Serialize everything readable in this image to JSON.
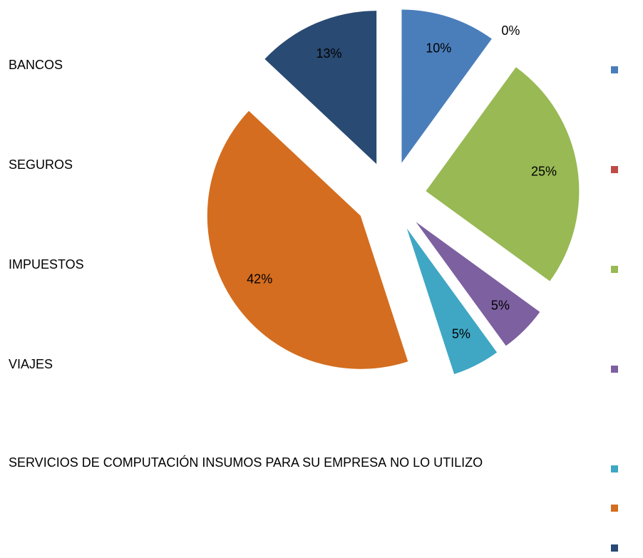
{
  "chart_data": {
    "type": "pie",
    "categories": [
      "BANCOS",
      "SEGUROS",
      "IMPUESTOS",
      "VIAJES",
      "SERVICIOS DE COMPUTACIÓN",
      "INSUMOS PARA SU EMPRESA",
      "NO LO UTILIZO"
    ],
    "values": [
      10,
      0,
      25,
      5,
      5,
      42,
      13
    ],
    "value_labels": [
      "10%",
      "0%",
      "25%",
      "5%",
      "5%",
      "42%",
      "13%"
    ],
    "colors": [
      "#4a7ebb",
      "#be4b48",
      "#98b954",
      "#7d60a0",
      "#3fa7c4",
      "#d46d1f",
      "#294a72"
    ],
    "exploded": true
  }
}
